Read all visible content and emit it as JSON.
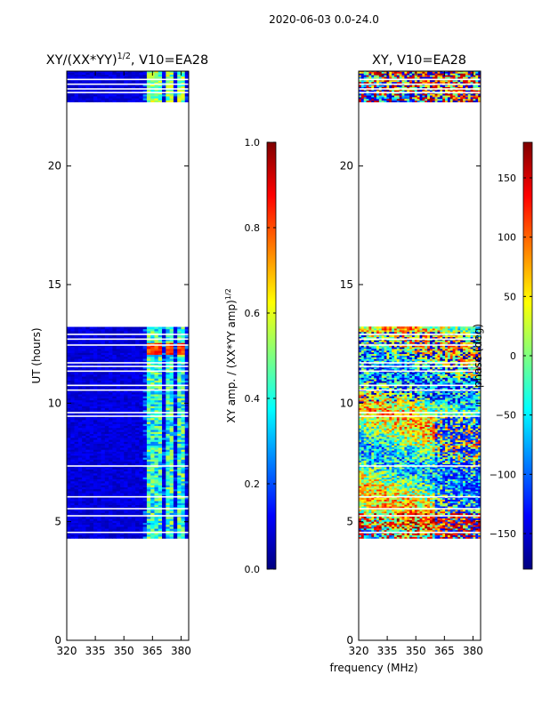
{
  "suptitle": "2020-06-03 0.0-24.0",
  "xlabel_shared": "frequency (MHz)",
  "colors": {
    "jet": [
      "#00007f",
      "#0000ff",
      "#007fff",
      "#00ffff",
      "#7fff7f",
      "#ffff00",
      "#ff7f00",
      "#ff0000",
      "#7f0000"
    ]
  },
  "chart_data": [
    {
      "type": "heatmap",
      "title": "XY/(XX*YY)^1/2, V10=EA28",
      "title_main": "XY/(XX*YY)",
      "title_exp": "1/2",
      "title_suffix": ", V10=EA28",
      "xlabel": "",
      "ylabel": "UT (hours)",
      "x_range": [
        320,
        384
      ],
      "y_range": [
        0,
        24
      ],
      "xticks": [
        320,
        335,
        350,
        365,
        380
      ],
      "yticks": [
        0,
        5,
        10,
        15,
        20
      ],
      "colorbar": {
        "label": "XY amp. / (XX*YY amp)^1/2",
        "label_main": "XY amp. / (XX*YY amp)",
        "label_exp": "1/2",
        "range": [
          0.0,
          1.0
        ],
        "ticks": [
          "0.0",
          "0.2",
          "0.4",
          "0.6",
          "0.8",
          "1.0"
        ],
        "tick_values": [
          0.0,
          0.2,
          0.4,
          0.6,
          0.8,
          1.0
        ]
      },
      "data_time_ranges_hours": [
        [
          4.3,
          13.2
        ],
        [
          22.7,
          24.0
        ]
      ],
      "gap_lines_hours": [
        4.55,
        5.25,
        5.55,
        6.05,
        7.35,
        9.45,
        9.6,
        10.55,
        10.75,
        11.35,
        11.55,
        11.7,
        12.45,
        12.7,
        12.9,
        23.1,
        23.25,
        23.45,
        23.65
      ],
      "bright_band_mhz": [
        [
          362,
          365
        ],
        [
          367,
          370
        ],
        [
          373,
          376
        ],
        [
          378,
          381
        ]
      ],
      "peak_time_hours": [
        12.0,
        12.5
      ],
      "typical_background": 0.05,
      "band_level": 0.4,
      "peak_level": 0.9
    },
    {
      "type": "heatmap",
      "title": "XY, V10=EA28",
      "xlabel": "frequency (MHz)",
      "ylabel": "",
      "x_range": [
        320,
        384
      ],
      "y_range": [
        0,
        24
      ],
      "xticks": [
        320,
        335,
        350,
        365,
        380
      ],
      "yticks": [
        0,
        5,
        10,
        15,
        20
      ],
      "colorbar": {
        "label": "phase (deg)",
        "range": [
          -180,
          180
        ],
        "ticks": [
          "−150",
          "−100",
          "−50",
          "0",
          "50",
          "100",
          "150"
        ],
        "tick_values": [
          -150,
          -100,
          -50,
          0,
          50,
          100,
          150
        ]
      },
      "data_time_ranges_hours": [
        [
          4.3,
          13.2
        ],
        [
          22.7,
          24.0
        ]
      ],
      "gap_lines_hours": [
        4.55,
        5.25,
        5.55,
        6.05,
        7.35,
        9.45,
        9.6,
        10.55,
        10.75,
        11.35,
        11.55,
        11.7,
        12.45,
        12.7,
        12.9,
        23.1,
        23.25,
        23.45,
        23.65
      ]
    }
  ]
}
